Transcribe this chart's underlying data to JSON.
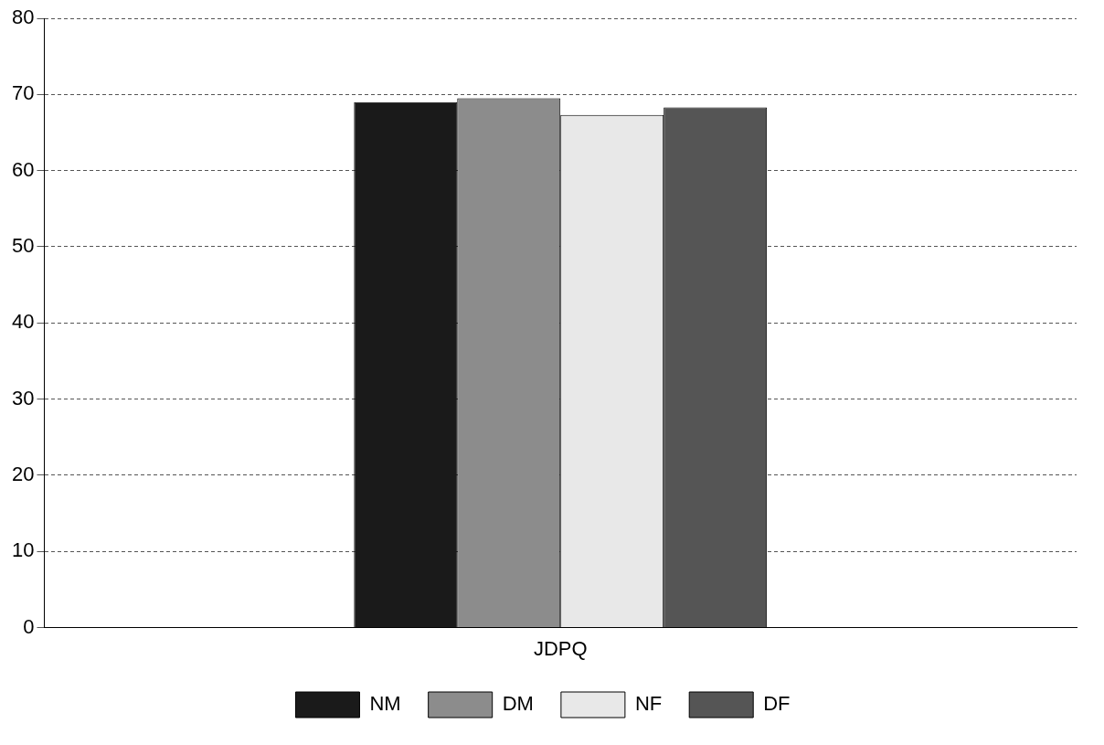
{
  "chart_data": {
    "type": "bar",
    "categories": [
      "JDPQ"
    ],
    "series": [
      {
        "name": "NM",
        "color": "#1a1a1a",
        "values": [
          69
        ]
      },
      {
        "name": "DM",
        "color": "#8c8c8c",
        "values": [
          69.5
        ]
      },
      {
        "name": "NF",
        "color": "#e8e8e8",
        "values": [
          67.3
        ]
      },
      {
        "name": "DF",
        "color": "#555555",
        "values": [
          68.3
        ]
      }
    ],
    "ylim": [
      0,
      80
    ],
    "yticks": [
      0,
      10,
      20,
      30,
      40,
      50,
      60,
      70,
      80
    ],
    "grid": "y",
    "legend": "bottom"
  }
}
